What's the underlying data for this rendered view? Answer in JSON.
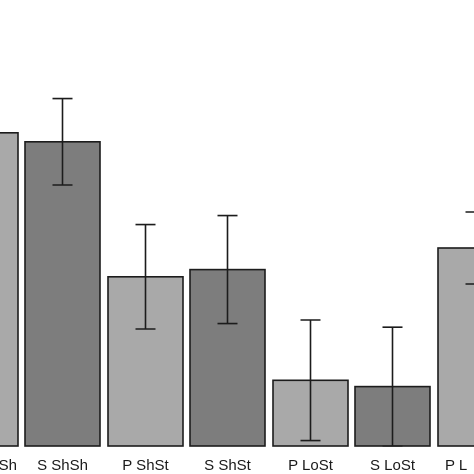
{
  "chart_data": {
    "type": "bar",
    "categories": [
      "P ShSh",
      "S ShSh",
      "P ShSt",
      "S ShSt",
      "P LoSt",
      "S LoSt",
      "P LoSh"
    ],
    "tick_labels": [
      "Sh",
      "S ShSh",
      "P ShSt",
      "S ShSt",
      "P LoSt",
      "S LoSt",
      "P L"
    ],
    "values": [
      3.48,
      3.38,
      1.88,
      1.96,
      0.73,
      0.66,
      2.2
    ],
    "error": [
      null,
      0.48,
      0.58,
      0.6,
      0.67,
      0.66,
      0.4
    ],
    "colors": [
      "#a9a9a9",
      "#7d7d7d",
      "#a9a9a9",
      "#7d7d7d",
      "#a9a9a9",
      "#7d7d7d",
      "#a9a9a9"
    ],
    "title": "",
    "xlabel": "",
    "ylabel": "",
    "ylim": [
      0,
      5
    ],
    "grid": false
  }
}
